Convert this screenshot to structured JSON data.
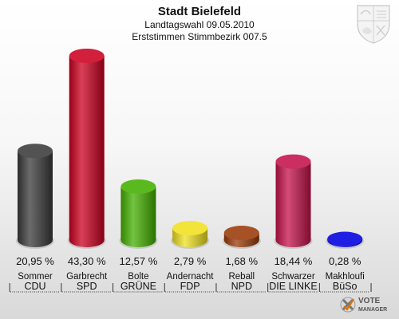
{
  "chart_data": {
    "type": "bar",
    "title": "Stadt Bielefeld",
    "subtitle": [
      "Landtagswahl 09.05.2010",
      "Erststimmen Stimmbezirk 007.5"
    ],
    "ylim": [
      0,
      43.3
    ],
    "grid": false,
    "legend": "none",
    "categories": [
      {
        "candidate": "Sommer",
        "party": "CDU",
        "label": "20,95 %",
        "value": 20.95,
        "color": "#3a3a3a"
      },
      {
        "candidate": "Garbrecht",
        "party": "SPD",
        "label": "43,30 %",
        "value": 43.3,
        "color": "#cc0020"
      },
      {
        "candidate": "Bolte",
        "party": "GRÜNE",
        "label": "12,57 %",
        "value": 12.57,
        "color": "#44b000"
      },
      {
        "candidate": "Andernacht",
        "party": "FDP",
        "label": "2,79 %",
        "value": 2.79,
        "color": "#f0e020"
      },
      {
        "candidate": "Reball",
        "party": "NPD",
        "label": "1,68 %",
        "value": 1.68,
        "color": "#9a3a08"
      },
      {
        "candidate": "Schwarzer",
        "party": "DIE LINKE",
        "label": "18,44 %",
        "value": 18.44,
        "color": "#c4124a"
      },
      {
        "candidate": "Makhloufi",
        "party": "BüSo",
        "label": "0,28 %",
        "value": 0.28,
        "color": "#0000e0"
      }
    ]
  },
  "branding": {
    "crest": "nrw-coat-of-arms-icon",
    "logo_line1": "VOTE",
    "logo_line2": "MANAGER"
  }
}
